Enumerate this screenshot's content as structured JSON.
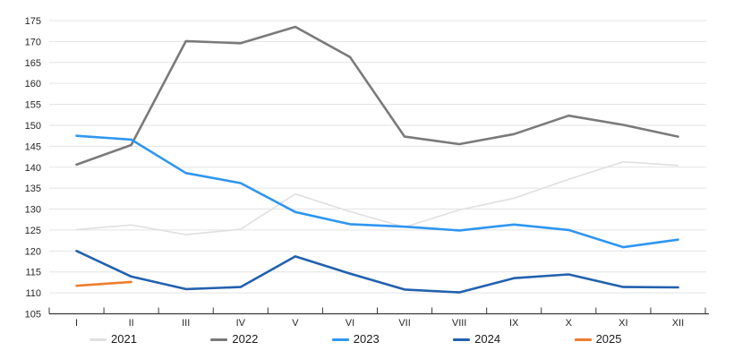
{
  "chart_title": "",
  "colors": {
    "background": "#ffffff",
    "gridline": "#e3e3e3",
    "axis_line": "#3a3a3a",
    "tick_label": "#262626",
    "legend_text": "#1a1a1a"
  },
  "chart_data": {
    "type": "line",
    "title": "",
    "xlabel": "",
    "ylabel": "",
    "categories": [
      "I",
      "II",
      "III",
      "IV",
      "V",
      "VI",
      "VII",
      "VIII",
      "IX",
      "X",
      "XI",
      "XII"
    ],
    "series": [
      {
        "name": "2021",
        "color": "#e1e1e1",
        "stroke_width": 1.7,
        "values": [
          125.1,
          126.2,
          123.9,
          125.2,
          133.6,
          129.4,
          125.7,
          129.8,
          132.6,
          137.1,
          141.3,
          140.4
        ]
      },
      {
        "name": "2022",
        "color": "#7a7a7a",
        "stroke_width": 2.6,
        "values": [
          140.6,
          145.3,
          170.1,
          169.6,
          173.5,
          166.3,
          147.3,
          145.5,
          147.9,
          152.3,
          150.1,
          147.3
        ]
      },
      {
        "name": "2023",
        "color": "#2f96f0",
        "stroke_width": 2.6,
        "values": [
          147.5,
          146.6,
          138.6,
          136.2,
          129.3,
          126.4,
          125.8,
          124.9,
          126.3,
          125.0,
          120.9,
          122.7
        ]
      },
      {
        "name": "2024",
        "color": "#2261ae",
        "stroke_width": 2.6,
        "values": [
          120.0,
          113.9,
          110.9,
          111.4,
          118.7,
          114.6,
          110.8,
          110.1,
          113.5,
          114.4,
          111.4,
          111.3
        ]
      },
      {
        "name": "2025",
        "color": "#ee7d2e",
        "stroke_width": 2.6,
        "values": [
          111.7,
          112.6
        ]
      }
    ],
    "ylim": [
      105,
      175
    ],
    "ytick_step": 5,
    "ytick_labels": [
      "105",
      "110",
      "115",
      "120",
      "125",
      "130",
      "135",
      "140",
      "145",
      "150",
      "155",
      "160",
      "165",
      "170",
      "175"
    ],
    "grid": "horizontal",
    "legend_position": "bottom"
  }
}
